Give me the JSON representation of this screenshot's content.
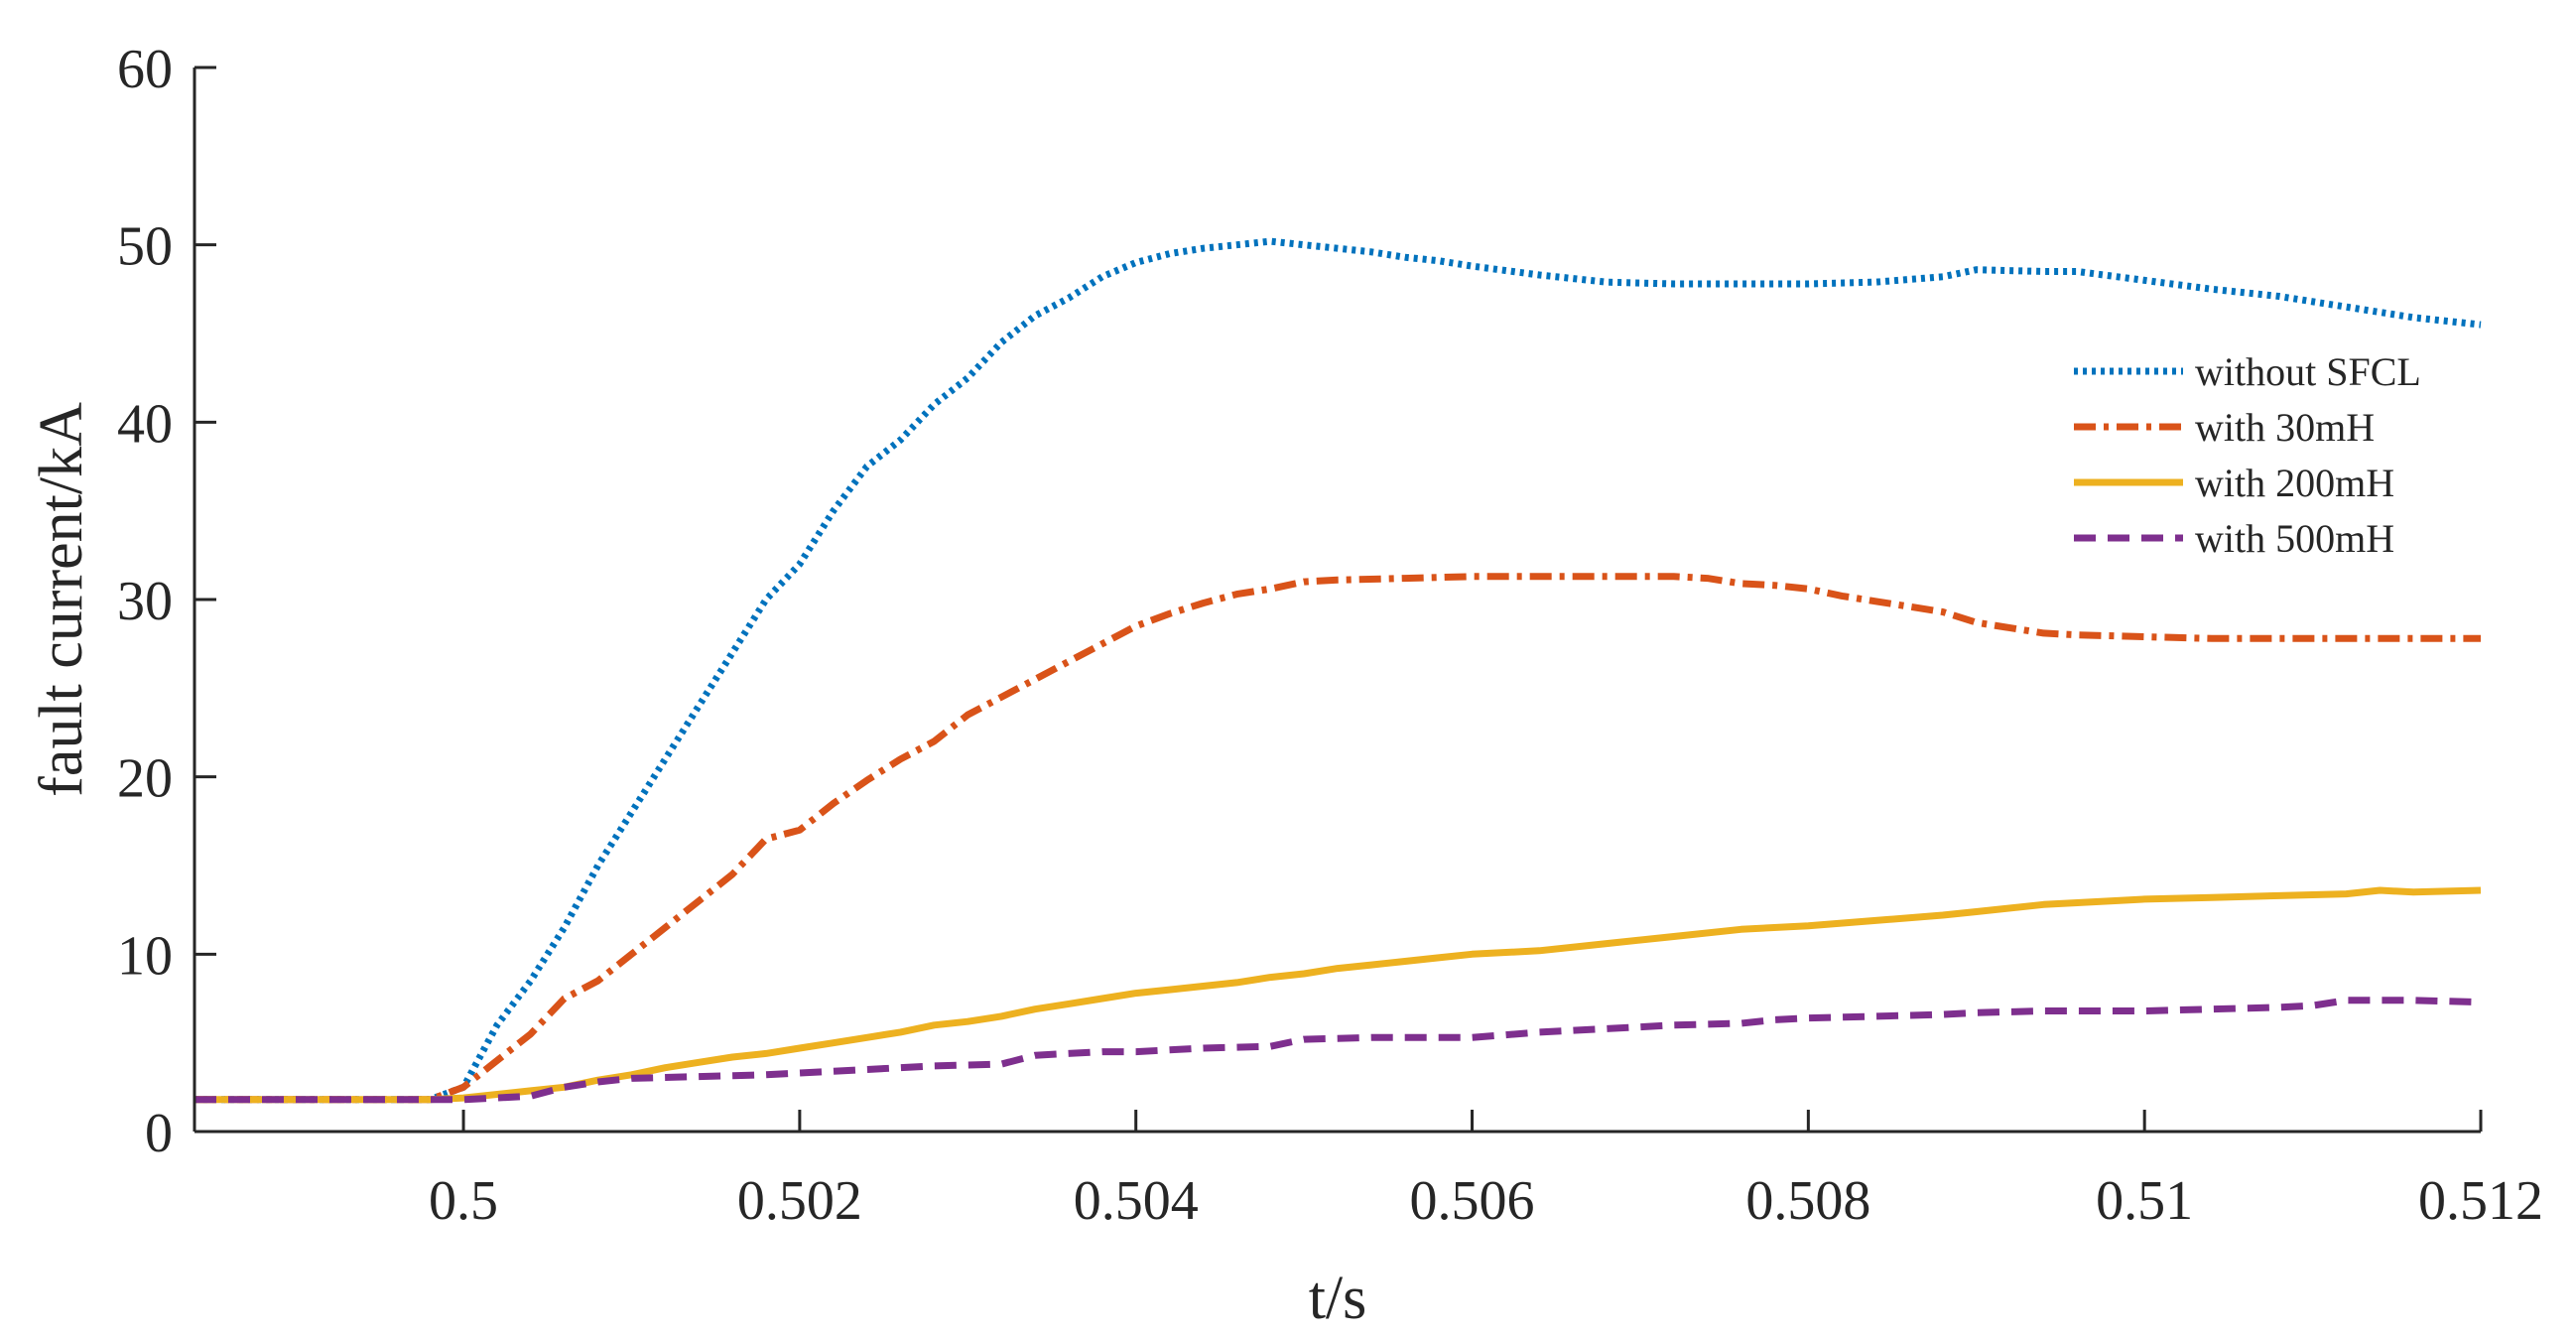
{
  "chart_data": {
    "type": "line",
    "xlabel": "t/s",
    "ylabel": "fault current/kA",
    "xlim": [
      0.4984,
      0.512
    ],
    "ylim": [
      0,
      60
    ],
    "xticks": [
      0.5,
      0.502,
      0.504,
      0.506,
      0.508,
      0.51,
      0.512
    ],
    "xtick_labels": [
      "0.5",
      "0.502",
      "0.504",
      "0.506",
      "0.508",
      "0.51",
      "0.512"
    ],
    "yticks": [
      0,
      10,
      20,
      30,
      40,
      50,
      60
    ],
    "ytick_labels": [
      "0",
      "10",
      "20",
      "30",
      "40",
      "50",
      "60"
    ],
    "grid": false,
    "legend_position": "right",
    "series": [
      {
        "name": "without SFCL",
        "color": "#0072BD",
        "style": "dotted",
        "points": [
          [
            0.4984,
            1.8
          ],
          [
            0.4998,
            1.8
          ],
          [
            0.5,
            2.5
          ],
          [
            0.5002,
            6
          ],
          [
            0.5004,
            8.5
          ],
          [
            0.5006,
            11.5
          ],
          [
            0.5008,
            15
          ],
          [
            0.501,
            18
          ],
          [
            0.5012,
            21
          ],
          [
            0.5014,
            24
          ],
          [
            0.5016,
            27
          ],
          [
            0.5018,
            30
          ],
          [
            0.502,
            32
          ],
          [
            0.5022,
            35
          ],
          [
            0.5024,
            37.5
          ],
          [
            0.5026,
            39
          ],
          [
            0.5028,
            41
          ],
          [
            0.503,
            42.5
          ],
          [
            0.5032,
            44.5
          ],
          [
            0.5034,
            46
          ],
          [
            0.5036,
            47
          ],
          [
            0.5038,
            48.2
          ],
          [
            0.504,
            49
          ],
          [
            0.5042,
            49.5
          ],
          [
            0.5044,
            49.8
          ],
          [
            0.5046,
            50
          ],
          [
            0.5048,
            50.2
          ],
          [
            0.505,
            50
          ],
          [
            0.5052,
            49.8
          ],
          [
            0.5054,
            49.6
          ],
          [
            0.5056,
            49.3
          ],
          [
            0.5058,
            49.1
          ],
          [
            0.506,
            48.8
          ],
          [
            0.5064,
            48.3
          ],
          [
            0.5068,
            47.9
          ],
          [
            0.5072,
            47.8
          ],
          [
            0.5076,
            47.8
          ],
          [
            0.508,
            47.8
          ],
          [
            0.5084,
            47.9
          ],
          [
            0.5088,
            48.2
          ],
          [
            0.509,
            48.6
          ],
          [
            0.5094,
            48.5
          ],
          [
            0.5096,
            48.5
          ],
          [
            0.51,
            48
          ],
          [
            0.5104,
            47.5
          ],
          [
            0.5108,
            47.1
          ],
          [
            0.5112,
            46.5
          ],
          [
            0.5116,
            45.9
          ],
          [
            0.512,
            45.5
          ]
        ]
      },
      {
        "name": "with 30mH",
        "color": "#D95319",
        "style": "dashdot",
        "points": [
          [
            0.4984,
            1.8
          ],
          [
            0.4998,
            1.8
          ],
          [
            0.5,
            2.5
          ],
          [
            0.5002,
            4
          ],
          [
            0.5004,
            5.5
          ],
          [
            0.5006,
            7.5
          ],
          [
            0.5008,
            8.5
          ],
          [
            0.501,
            10
          ],
          [
            0.5012,
            11.5
          ],
          [
            0.5014,
            13
          ],
          [
            0.5016,
            14.5
          ],
          [
            0.5018,
            16.5
          ],
          [
            0.502,
            17
          ],
          [
            0.5022,
            18.5
          ],
          [
            0.5024,
            19.8
          ],
          [
            0.5026,
            21
          ],
          [
            0.5028,
            22
          ],
          [
            0.503,
            23.5
          ],
          [
            0.5032,
            24.5
          ],
          [
            0.5034,
            25.5
          ],
          [
            0.5036,
            26.5
          ],
          [
            0.5038,
            27.5
          ],
          [
            0.504,
            28.5
          ],
          [
            0.5042,
            29.2
          ],
          [
            0.5044,
            29.8
          ],
          [
            0.5046,
            30.3
          ],
          [
            0.5048,
            30.6
          ],
          [
            0.505,
            31
          ],
          [
            0.5052,
            31.1
          ],
          [
            0.5056,
            31.2
          ],
          [
            0.506,
            31.3
          ],
          [
            0.5064,
            31.3
          ],
          [
            0.5068,
            31.3
          ],
          [
            0.5072,
            31.3
          ],
          [
            0.5074,
            31.2
          ],
          [
            0.5076,
            30.9
          ],
          [
            0.5078,
            30.8
          ],
          [
            0.508,
            30.6
          ],
          [
            0.5082,
            30.2
          ],
          [
            0.5084,
            29.9
          ],
          [
            0.5086,
            29.6
          ],
          [
            0.5088,
            29.3
          ],
          [
            0.509,
            28.7
          ],
          [
            0.5092,
            28.4
          ],
          [
            0.5094,
            28.1
          ],
          [
            0.5096,
            28
          ],
          [
            0.51,
            27.9
          ],
          [
            0.5104,
            27.8
          ],
          [
            0.5108,
            27.8
          ],
          [
            0.5112,
            27.8
          ],
          [
            0.5116,
            27.8
          ],
          [
            0.512,
            27.8
          ]
        ]
      },
      {
        "name": "with 200mH",
        "color": "#EDB120",
        "style": "solid",
        "points": [
          [
            0.4984,
            1.8
          ],
          [
            0.4998,
            1.8
          ],
          [
            0.5,
            1.9
          ],
          [
            0.5004,
            2.3
          ],
          [
            0.5006,
            2.5
          ],
          [
            0.5008,
            2.9
          ],
          [
            0.501,
            3.2
          ],
          [
            0.5012,
            3.6
          ],
          [
            0.5014,
            3.9
          ],
          [
            0.5016,
            4.2
          ],
          [
            0.5018,
            4.4
          ],
          [
            0.502,
            4.7
          ],
          [
            0.5022,
            5
          ],
          [
            0.5024,
            5.3
          ],
          [
            0.5026,
            5.6
          ],
          [
            0.5028,
            6
          ],
          [
            0.503,
            6.2
          ],
          [
            0.5032,
            6.5
          ],
          [
            0.5034,
            6.9
          ],
          [
            0.5036,
            7.2
          ],
          [
            0.5038,
            7.5
          ],
          [
            0.504,
            7.8
          ],
          [
            0.5042,
            8
          ],
          [
            0.5044,
            8.2
          ],
          [
            0.5046,
            8.4
          ],
          [
            0.5048,
            8.7
          ],
          [
            0.505,
            8.9
          ],
          [
            0.5052,
            9.2
          ],
          [
            0.5054,
            9.4
          ],
          [
            0.5056,
            9.6
          ],
          [
            0.5058,
            9.8
          ],
          [
            0.506,
            10
          ],
          [
            0.5064,
            10.2
          ],
          [
            0.5068,
            10.6
          ],
          [
            0.5072,
            11
          ],
          [
            0.5076,
            11.4
          ],
          [
            0.508,
            11.6
          ],
          [
            0.5084,
            11.9
          ],
          [
            0.5088,
            12.2
          ],
          [
            0.509,
            12.4
          ],
          [
            0.5094,
            12.8
          ],
          [
            0.5096,
            12.9
          ],
          [
            0.51,
            13.1
          ],
          [
            0.5104,
            13.2
          ],
          [
            0.5108,
            13.3
          ],
          [
            0.5112,
            13.4
          ],
          [
            0.5114,
            13.6
          ],
          [
            0.5116,
            13.5
          ],
          [
            0.512,
            13.6
          ]
        ]
      },
      {
        "name": "with 500mH",
        "color": "#7E2F8E",
        "style": "dashed",
        "points": [
          [
            0.4984,
            1.8
          ],
          [
            0.4998,
            1.8
          ],
          [
            0.5,
            1.8
          ],
          [
            0.5004,
            2
          ],
          [
            0.5006,
            2.5
          ],
          [
            0.5008,
            2.8
          ],
          [
            0.501,
            3
          ],
          [
            0.5014,
            3.1
          ],
          [
            0.5018,
            3.2
          ],
          [
            0.502,
            3.3
          ],
          [
            0.5024,
            3.5
          ],
          [
            0.5028,
            3.7
          ],
          [
            0.5032,
            3.8
          ],
          [
            0.5034,
            4.3
          ],
          [
            0.5038,
            4.5
          ],
          [
            0.504,
            4.5
          ],
          [
            0.5044,
            4.7
          ],
          [
            0.5048,
            4.8
          ],
          [
            0.505,
            5.2
          ],
          [
            0.5054,
            5.3
          ],
          [
            0.5058,
            5.3
          ],
          [
            0.506,
            5.3
          ],
          [
            0.5064,
            5.6
          ],
          [
            0.5068,
            5.8
          ],
          [
            0.5072,
            6
          ],
          [
            0.5076,
            6.1
          ],
          [
            0.5078,
            6.3
          ],
          [
            0.508,
            6.4
          ],
          [
            0.5084,
            6.5
          ],
          [
            0.5088,
            6.6
          ],
          [
            0.509,
            6.7
          ],
          [
            0.5094,
            6.8
          ],
          [
            0.51,
            6.8
          ],
          [
            0.5104,
            6.9
          ],
          [
            0.5108,
            7
          ],
          [
            0.511,
            7.1
          ],
          [
            0.5112,
            7.4
          ],
          [
            0.5116,
            7.4
          ],
          [
            0.512,
            7.3
          ]
        ]
      }
    ]
  }
}
